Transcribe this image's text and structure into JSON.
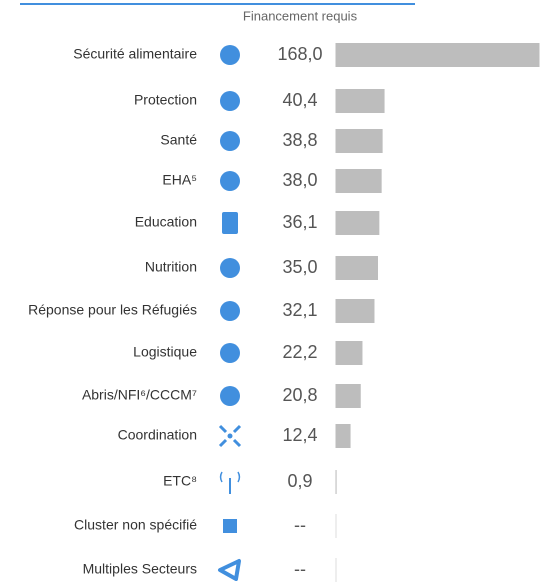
{
  "chart_data": {
    "type": "bar",
    "orientation": "horizontal",
    "header": "Financement requis",
    "categories": [
      "Sécurité alimentaire",
      "Protection",
      "Santé",
      "EHA⁵",
      "Education",
      "Nutrition",
      "Réponse pour les Réfugiés",
      "Logistique",
      "Abris/NFI⁶/CCCM⁷",
      "Coordination",
      "ETC⁸",
      "Cluster non spécifié",
      "Multiples Secteurs"
    ],
    "values": [
      168.0,
      40.4,
      38.8,
      38.0,
      36.1,
      35.0,
      32.1,
      22.2,
      20.8,
      12.4,
      0.9,
      null,
      null
    ],
    "value_labels": [
      "168,0",
      "40,4",
      "38,8",
      "38,0",
      "36,1",
      "35,0",
      "32,1",
      "22,2",
      "20,8",
      "12,4",
      "0,9",
      "--",
      "--"
    ],
    "color": "#bdbdbd",
    "icon_color": "#418fde"
  }
}
